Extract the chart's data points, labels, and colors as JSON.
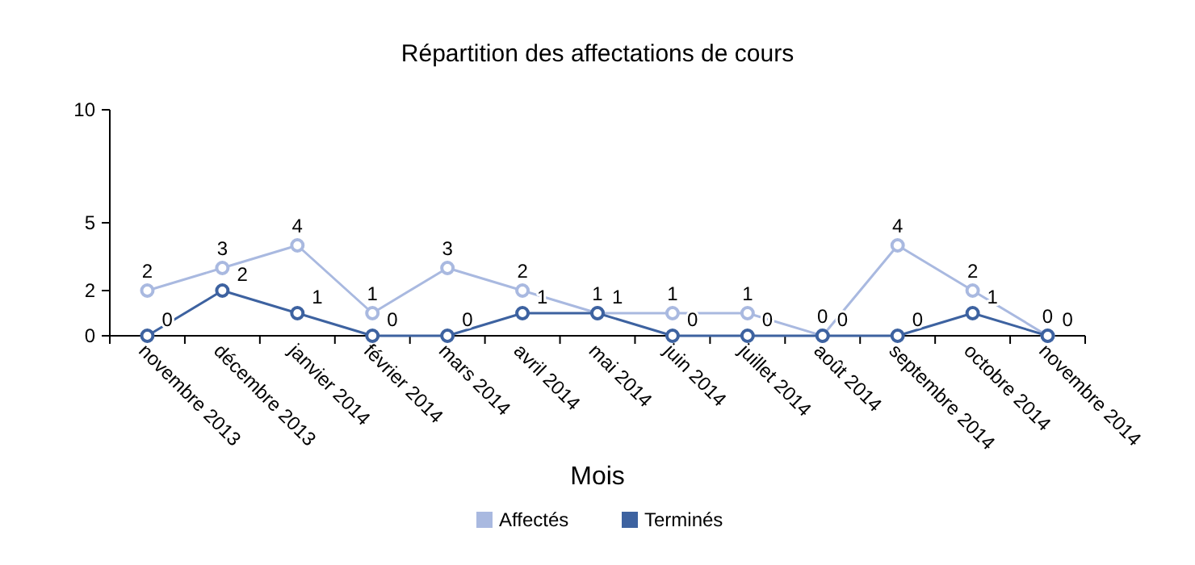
{
  "chart_data": {
    "type": "line",
    "title": "Répartition des affectations de cours",
    "xlabel": "Mois",
    "categories": [
      "novembre 2013",
      "décembre 2013",
      "janvier 2014",
      "février 2014",
      "mars 2014",
      "avril 2014",
      "mai 2014",
      "juin 2014",
      "juillet 2014",
      "août 2014",
      "septembre 2014",
      "octobre 2014",
      "novembre 2014"
    ],
    "series": [
      {
        "name": "Affectés",
        "color": "#a9b9e0",
        "values": [
          2,
          3,
          4,
          1,
          3,
          2,
          1,
          1,
          1,
          0,
          4,
          2,
          0
        ]
      },
      {
        "name": "Terminés",
        "color": "#3d62a0",
        "values": [
          0,
          2,
          1,
          0,
          0,
          1,
          1,
          0,
          0,
          0,
          0,
          1,
          0
        ]
      }
    ],
    "ylim": [
      0,
      10
    ],
    "yticks": [
      0,
      2,
      5,
      10
    ],
    "data_labels": true,
    "marker": "circle",
    "legend": "bottom"
  }
}
